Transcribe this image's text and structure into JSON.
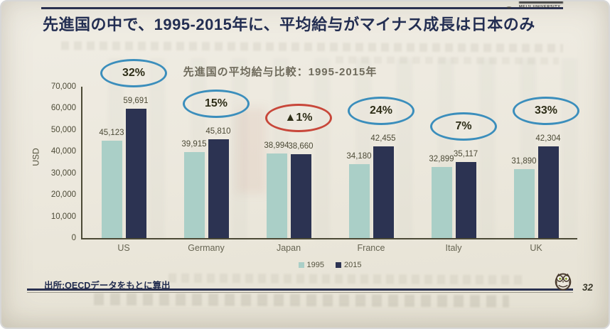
{
  "slide": {
    "title": "先進国の中で、1995-2015年に、平均給与がマイナス成長は日本のみ",
    "source": "出所:OECDデータをもとに算出",
    "page_number": "32",
    "logo_text": "MEIJI UNIVERSITY"
  },
  "chart_data": {
    "type": "bar",
    "title": "先進国の平均給与比較：1995-2015年",
    "ylabel": "USD",
    "xlabel": "",
    "ylim": [
      0,
      70000
    ],
    "yticks": [
      0,
      10000,
      20000,
      30000,
      40000,
      50000,
      60000,
      70000
    ],
    "ytick_labels": [
      "0",
      "10,000",
      "20,000",
      "30,000",
      "40,000",
      "50,000",
      "60,000",
      "70,000"
    ],
    "grid": false,
    "legend_position": "bottom",
    "categories": [
      "US",
      "Germany",
      "Japan",
      "France",
      "Italy",
      "UK"
    ],
    "series": [
      {
        "name": "1995",
        "color": "#aacfc7",
        "values": [
          45123,
          39915,
          38994,
          34180,
          32899,
          31890
        ],
        "labels": [
          "45,123",
          "39,915",
          "38,994",
          "34,180",
          "32,899",
          "31,890"
        ]
      },
      {
        "name": "2015",
        "color": "#2c3352",
        "values": [
          59691,
          45810,
          38660,
          42455,
          35117,
          42304
        ],
        "labels": [
          "59,691",
          "45,810",
          "38,660",
          "42,455",
          "35,117",
          "42,304"
        ]
      }
    ],
    "annotations": [
      {
        "category": "US",
        "label": "32%",
        "ring_color": "#3b8ebc"
      },
      {
        "category": "Germany",
        "label": "15%",
        "ring_color": "#3b8ebc"
      },
      {
        "category": "Japan",
        "label": "▲1%",
        "ring_color": "#c8473a"
      },
      {
        "category": "France",
        "label": "24%",
        "ring_color": "#3b8ebc"
      },
      {
        "category": "Italy",
        "label": "7%",
        "ring_color": "#3b8ebc"
      },
      {
        "category": "UK",
        "label": "33%",
        "ring_color": "#3b8ebc"
      }
    ]
  },
  "colors": {
    "title_navy": "#232e52",
    "bar_1995": "#aacfc7",
    "bar_2015": "#2c3352",
    "annotation_blue": "#3b8ebc",
    "annotation_red": "#c8473a",
    "paper": "#ece8dd"
  }
}
